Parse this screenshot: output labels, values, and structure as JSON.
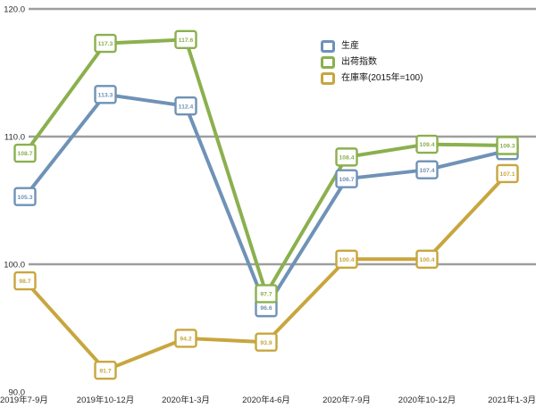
{
  "chart_data": {
    "type": "line",
    "title": "",
    "xlabel": "",
    "ylabel": "",
    "categories": [
      "2019年7-9月",
      "2019年10-12月",
      "2020年1-3月",
      "2020年4-6月",
      "2020年7-9月",
      "2020年10-12月",
      "2021年1-3月"
    ],
    "series": [
      {
        "name": "生産",
        "color": "#6F92B7",
        "values": [
          105.3,
          113.3,
          112.4,
          96.6,
          106.7,
          107.4,
          108.9
        ]
      },
      {
        "name": "出荷指数",
        "color": "#8BB04E",
        "values": [
          108.7,
          117.3,
          117.6,
          97.7,
          108.4,
          109.4,
          109.3
        ]
      },
      {
        "name": "在庫率(2015年=100)",
        "color": "#C8A63E",
        "values": [
          98.7,
          91.7,
          94.2,
          93.9,
          100.4,
          100.4,
          107.1
        ]
      }
    ],
    "ylim": [
      90,
      120
    ],
    "yticks": [
      {
        "value": 120,
        "label": "120.0",
        "gridline": true
      },
      {
        "value": 110,
        "label": "110.0",
        "gridline": true
      },
      {
        "value": 100,
        "label": "100.0",
        "gridline": true
      },
      {
        "value": 90,
        "label": "90.0",
        "gridline": false
      }
    ],
    "grid": "horizontal",
    "gridline_color": "#9E9E9E",
    "axis_text_color": "#2B2B2B",
    "legend_position": "top-right",
    "marker_style": "white-square-with-value-label",
    "background": "#FFFFFF"
  }
}
